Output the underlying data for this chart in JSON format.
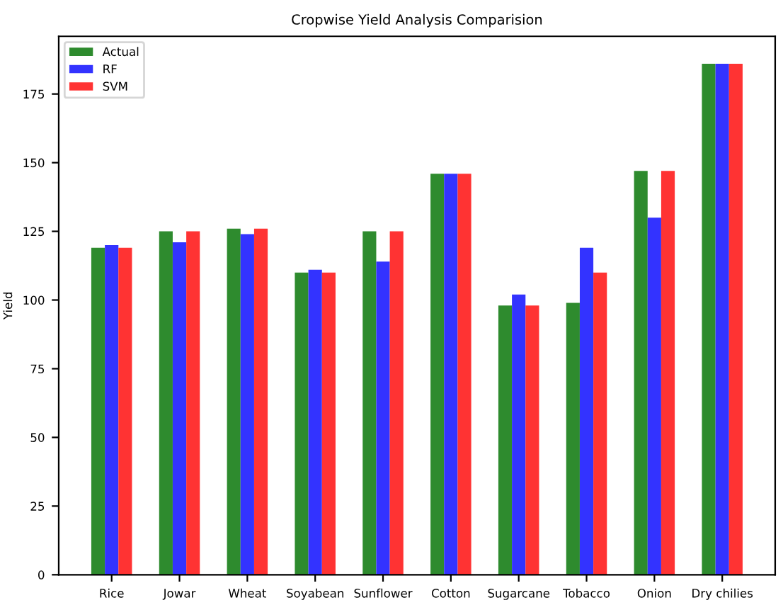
{
  "chart_data": {
    "type": "bar",
    "title": "Cropwise Yield Analysis Comparision",
    "ylabel": "Yield",
    "categories": [
      "Rice",
      "Jowar",
      "Wheat",
      "Soyabean",
      "Sunflower",
      "Cotton",
      "Sugarcane",
      "Tobacco",
      "Onion",
      "Dry chilies"
    ],
    "series": [
      {
        "name": "Actual",
        "color": "#2e8b2e",
        "values": [
          119,
          125,
          126,
          110,
          125,
          146,
          98,
          99,
          147,
          186
        ]
      },
      {
        "name": "RF",
        "color": "#3333ff",
        "values": [
          120,
          121,
          124,
          111,
          114,
          146,
          102,
          119,
          130,
          186
        ]
      },
      {
        "name": "SVM",
        "color": "#ff3333",
        "values": [
          119,
          125,
          126,
          110,
          125,
          146,
          98,
          110,
          147,
          186
        ]
      }
    ],
    "ylim": [
      0,
      196
    ],
    "yticks": [
      0,
      25,
      50,
      75,
      100,
      125,
      150,
      175
    ],
    "legend": "top left",
    "grid": false
  }
}
